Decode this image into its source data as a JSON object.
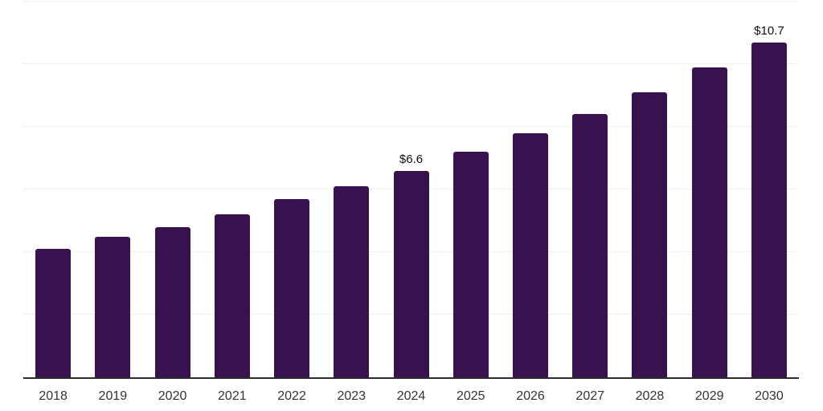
{
  "chart_data": {
    "type": "bar",
    "title": "",
    "categories": [
      "2018",
      "2019",
      "2020",
      "2021",
      "2022",
      "2023",
      "2024",
      "2025",
      "2026",
      "2027",
      "2028",
      "2029",
      "2030"
    ],
    "values": [
      4.1,
      4.5,
      4.8,
      5.2,
      5.7,
      6.1,
      6.6,
      7.2,
      7.8,
      8.4,
      9.1,
      9.9,
      10.7
    ],
    "data_labels": [
      {
        "category": "2024",
        "text": "$6.6"
      },
      {
        "category": "2030",
        "text": "$10.7"
      }
    ],
    "xlabel": "",
    "ylabel": "",
    "ylim": [
      0,
      12
    ],
    "gridline_step": 2,
    "grid": true,
    "legend": false,
    "y_axis_labels_visible": false,
    "bar_color": "#37124F",
    "gridline_color": "#EFEFEF",
    "axis_line_color": "#2B2B2B",
    "tick_label_color": "#333333",
    "data_label_color": "#101010"
  }
}
